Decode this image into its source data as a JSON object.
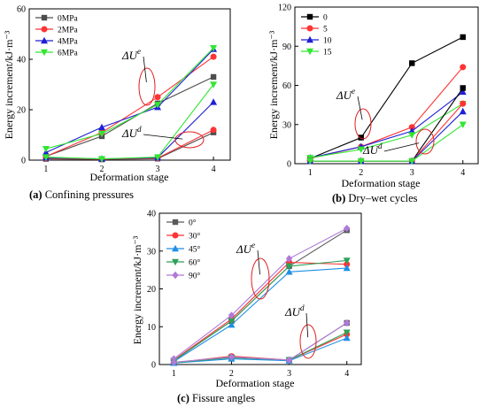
{
  "chart_data": [
    {
      "type": "line",
      "caption_letter": "(a)",
      "caption_text": " Confining pressures",
      "xlabel": "Deformation stage",
      "ylabel": "Energy increment/kJ·m⁻³",
      "x": [
        1,
        2,
        3,
        4
      ],
      "xlim": [
        0.7,
        4.3
      ],
      "ylim": [
        0,
        60
      ],
      "yticks": [
        0,
        20,
        40,
        60
      ],
      "legend_position": "top-left",
      "series": [
        {
          "name": "0MPa",
          "group": "elastic",
          "color": "#4d4d4d",
          "marker": "square",
          "values": [
            1.5,
            9.5,
            22.5,
            33.0
          ]
        },
        {
          "name": "2MPa",
          "group": "elastic",
          "color": "#ff3333",
          "marker": "circle",
          "values": [
            1.5,
            11.0,
            25.0,
            41.0
          ]
        },
        {
          "name": "4MPa",
          "group": "elastic",
          "color": "#1f1fd6",
          "marker": "triangle",
          "values": [
            3.0,
            13.0,
            21.0,
            44.0
          ]
        },
        {
          "name": "6MPa",
          "group": "elastic",
          "color": "#33e633",
          "marker": "triangle-down",
          "values": [
            4.5,
            10.5,
            22.0,
            44.5
          ]
        },
        {
          "name": "0MPa",
          "group": "dissipated",
          "color": "#4d4d4d",
          "marker": "square",
          "values": [
            0.5,
            0.3,
            0.6,
            11.0
          ]
        },
        {
          "name": "2MPa",
          "group": "dissipated",
          "color": "#ff3333",
          "marker": "circle",
          "values": [
            0.8,
            0.4,
            0.8,
            12.0
          ]
        },
        {
          "name": "4MPa",
          "group": "dissipated",
          "color": "#1f1fd6",
          "marker": "triangle",
          "values": [
            1.0,
            0.5,
            1.0,
            23.0
          ]
        },
        {
          "name": "6MPa",
          "group": "dissipated",
          "color": "#33e633",
          "marker": "triangle-down",
          "values": [
            1.2,
            0.5,
            1.2,
            30.0
          ]
        }
      ],
      "annotations": [
        {
          "text_main": "ΔU",
          "text_sup": "e",
          "target_x": 3,
          "target_y": 24
        },
        {
          "text_main": "ΔU",
          "text_sup": "d",
          "target_x": 3.9,
          "target_y": 11
        }
      ]
    },
    {
      "type": "line",
      "caption_letter": "(b)",
      "caption_text": " Dry–wet cycles",
      "xlabel": "Deformation stage",
      "ylabel": "Energy increment/kJ·m⁻³",
      "x": [
        1,
        2,
        3,
        4
      ],
      "xlim": [
        0.7,
        4.3
      ],
      "ylim": [
        0,
        120
      ],
      "yticks": [
        0,
        30,
        60,
        90,
        120
      ],
      "legend_position": "top-left",
      "series": [
        {
          "name": "0",
          "group": "elastic",
          "color": "#000000",
          "marker": "square",
          "values": [
            4,
            20,
            77,
            97
          ]
        },
        {
          "name": "5",
          "group": "elastic",
          "color": "#ff3333",
          "marker": "circle",
          "values": [
            4,
            13,
            28,
            74
          ]
        },
        {
          "name": "10",
          "group": "elastic",
          "color": "#1f1fd6",
          "marker": "triangle",
          "values": [
            4.5,
            13,
            25,
            55
          ]
        },
        {
          "name": "15",
          "group": "elastic",
          "color": "#33e633",
          "marker": "triangle-down",
          "values": [
            4.5,
            11,
            22,
            46
          ]
        },
        {
          "name": "0",
          "group": "dissipated",
          "color": "#000000",
          "marker": "square",
          "values": [
            2,
            2,
            2,
            58
          ]
        },
        {
          "name": "5",
          "group": "dissipated",
          "color": "#ff3333",
          "marker": "circle",
          "values": [
            2,
            2,
            2,
            46
          ]
        },
        {
          "name": "10",
          "group": "dissipated",
          "color": "#1f1fd6",
          "marker": "triangle",
          "values": [
            2,
            2,
            2,
            40
          ]
        },
        {
          "name": "15",
          "group": "dissipated",
          "color": "#33e633",
          "marker": "triangle-down",
          "values": [
            2,
            2,
            2,
            30
          ]
        }
      ],
      "annotations": [
        {
          "text_main": "ΔU",
          "text_sup": "e",
          "target_x": 2,
          "target_y": 17
        },
        {
          "text_main": "ΔU",
          "text_sup": "d",
          "target_x": 3,
          "target_y": 8
        }
      ]
    },
    {
      "type": "line",
      "caption_letter": "(c)",
      "caption_text": " Fissure angles",
      "xlabel": "Deformation stage",
      "ylabel": "Energy increment/kJ·m⁻³",
      "x": [
        1,
        2,
        3,
        4
      ],
      "xlim": [
        0.75,
        4.25
      ],
      "ylim": [
        0,
        40
      ],
      "yticks": [
        0,
        10,
        20,
        30,
        40
      ],
      "legend_position": "top-left",
      "series": [
        {
          "name": "0°",
          "group": "elastic",
          "color": "#5a5a5a",
          "marker": "square",
          "values": [
            1.0,
            11.5,
            26.0,
            35.5
          ]
        },
        {
          "name": "30°",
          "group": "elastic",
          "color": "#ff3333",
          "marker": "circle",
          "values": [
            1.2,
            12.0,
            27.0,
            26.5
          ]
        },
        {
          "name": "45°",
          "group": "elastic",
          "color": "#1f8fe6",
          "marker": "triangle",
          "values": [
            0.8,
            10.5,
            24.5,
            25.5
          ]
        },
        {
          "name": "60°",
          "group": "elastic",
          "color": "#2ea05a",
          "marker": "triangle-down",
          "values": [
            1.0,
            11.5,
            26.0,
            27.5
          ]
        },
        {
          "name": "90°",
          "group": "elastic",
          "color": "#b07ad8",
          "marker": "diamond",
          "values": [
            1.5,
            13.0,
            28.0,
            36.0
          ]
        },
        {
          "name": "0°",
          "group": "dissipated",
          "color": "#5a5a5a",
          "marker": "square",
          "values": [
            0.5,
            2.0,
            1.2,
            11.0
          ]
        },
        {
          "name": "30°",
          "group": "dissipated",
          "color": "#ff3333",
          "marker": "circle",
          "values": [
            0.5,
            2.2,
            1.2,
            8.0
          ]
        },
        {
          "name": "45°",
          "group": "dissipated",
          "color": "#1f8fe6",
          "marker": "triangle",
          "values": [
            0.4,
            1.5,
            1.0,
            7.0
          ]
        },
        {
          "name": "60°",
          "group": "dissipated",
          "color": "#2ea05a",
          "marker": "triangle-down",
          "values": [
            0.5,
            1.8,
            1.2,
            8.5
          ]
        },
        {
          "name": "90°",
          "group": "dissipated",
          "color": "#b07ad8",
          "marker": "diamond",
          "values": [
            0.6,
            2.0,
            1.2,
            11.0
          ]
        }
      ],
      "annotations": [
        {
          "text_main": "ΔU",
          "text_sup": "e",
          "target_x": 2.6,
          "target_y": 21
        },
        {
          "text_main": "ΔU",
          "text_sup": "d",
          "target_x": 3.7,
          "target_y": 6
        }
      ]
    }
  ]
}
